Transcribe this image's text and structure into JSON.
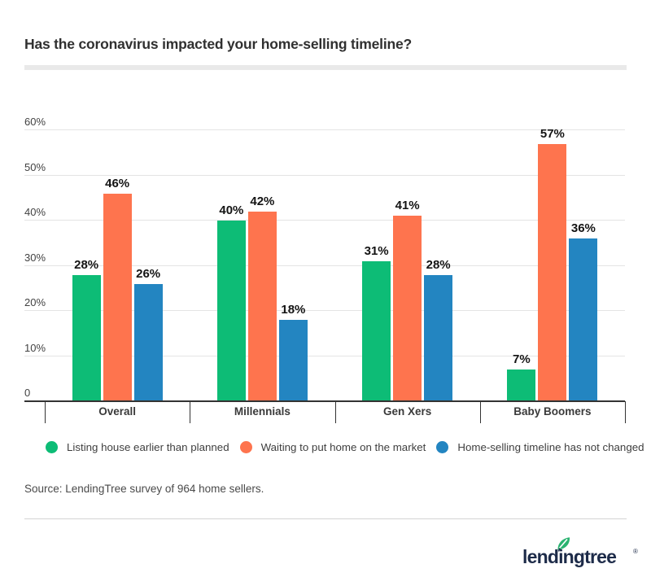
{
  "header": {
    "title": "Has the coronavirus impacted your home-selling timeline?"
  },
  "chart_data": {
    "type": "bar",
    "title": "Has the coronavirus impacted your home-selling timeline?",
    "categories": [
      "Overall",
      "Millennials",
      "Gen Xers",
      "Baby Boomers"
    ],
    "series": [
      {
        "name": "Listing house earlier than planned",
        "color": "#0dbc76",
        "values": [
          28,
          40,
          31,
          7
        ]
      },
      {
        "name": "Waiting to put home on the market",
        "color": "#fe744e",
        "values": [
          46,
          42,
          41,
          57
        ]
      },
      {
        "name": "Home-selling timeline has not changed",
        "color": "#2385c1",
        "values": [
          26,
          18,
          28,
          36
        ]
      }
    ],
    "value_suffix": "%",
    "yticks": [
      {
        "label": "60%",
        "value": 60
      },
      {
        "label": "50%",
        "value": 50
      },
      {
        "label": "40%",
        "value": 40
      },
      {
        "label": "30%",
        "value": 30
      },
      {
        "label": "20%",
        "value": 20
      },
      {
        "label": "10%",
        "value": 10
      },
      {
        "label": "0",
        "value": 0
      }
    ],
    "ylim": [
      0,
      60
    ],
    "grid": true,
    "legend_position": "bottom",
    "xlabel": "",
    "ylabel": ""
  },
  "footer": {
    "source": "Source: LendingTree survey of 964 home sellers.",
    "logo_text": "lendingtree",
    "logo_reg": "®"
  },
  "colors": {
    "green": "#0dbc76",
    "orange": "#fe744e",
    "blue": "#2385c1",
    "brand_navy": "#1d2b49",
    "leaf_green": "#2bb371"
  }
}
